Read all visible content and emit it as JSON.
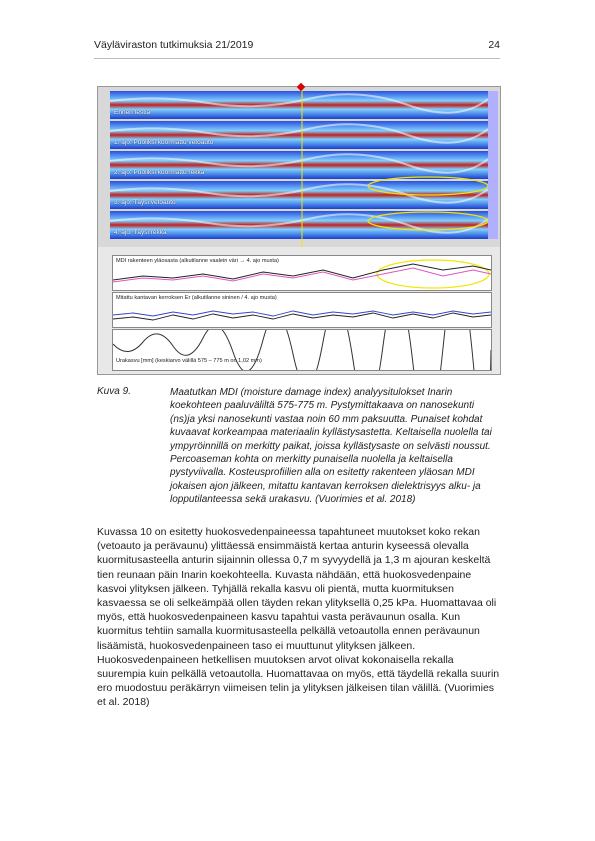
{
  "header": {
    "left": "Väyläviraston tutkimuksia 21/2019",
    "right": "24"
  },
  "figure": {
    "gpr_labels": [
      "Ennen testiä",
      "1. ajo: Puoliksi kuormattu vetoauto",
      "2. ajo: Puoliksi kuormattu rekka",
      "3. ajo: Täysi vetoauto",
      "4. ajo: Täysi rekka"
    ],
    "profile1_label": "MDI rakenteen yläosasta (alkutilanne vaalein väri → 4. ajo musta)",
    "profile2_label": "Mitattu kantavan kerroksen Er (alkutilanne sininen / 4. ajo musta)",
    "profile3_label": "Urakasvu [mm] (keskiarvo välillä 575 – 775 m on 1,02 mm)",
    "colors": {
      "highlight": "#f2e600",
      "marker": "#e00000",
      "gpr_bg": "#1a3fd0"
    }
  },
  "caption": {
    "number": "Kuva 9.",
    "text": "Maatutkan MDI (moisture damage index) analyysitulokset Inarin koekohteen paaluväliltä 575-775 m. Pystymittakaava on nanosekunti (ns)ja yksi nanosekunti vastaa noin 60 mm paksuutta. Punaiset kohdat kuvaavat korkeampaa materiaalin kyllästysastetta. Keltaisella nuolella tai ympyröinnillä on merkitty paikat, joissa kyllästysaste on selvästi noussut. Percoaseman kohta on merkitty punaisella nuolella ja keltaisella pystyviivalla. Kosteusprofiilien alla on esitetty rakenteen yläosan MDI jokaisen ajon jälkeen, mitattu kantavan kerroksen dielektrisyys alku- ja lopputilanteessa sekä urakasvu. (Vuorimies et al. 2018)"
  },
  "body": {
    "paragraph": "Kuvassa 10 on esitetty huokosvedenpaineessa tapahtuneet muutokset koko rekan (vetoauto ja perävaunu) ylittäessä ensimmäistä kertaa anturin kyseessä olevalla kuormitusasteella anturin sijainnin ollessa 0,7 m syvyydellä ja 1,3 m ajouran keskeltä tien reunaan päin Inarin koekohteella. Kuvasta nähdään, että huokosvedenpaine kasvoi ylityksen jälkeen. Tyhjällä rekalla kasvu oli pientä, mutta kuormituksen kasvaessa se oli selkeämpää ollen täyden rekan ylityksellä 0,25 kPa. Huomattavaa oli myös, että huokosvedenpaineen kasvu tapahtui vasta perävaunun osalla. Kun kuormitus tehtiin samalla kuormitusasteella pelkällä vetoautolla ennen perävaunun lisäämistä, huokosvedenpaineen taso ei muuttunut ylityksen jälkeen. Huokosvedenpaineen hetkellisen muutoksen arvot olivat kokonaisella rekalla suurempia kuin pelkällä vetoautolla. Huomattavaa on myös, että täydellä rekalla suurin ero muodostuu peräkärryn viimeisen telin ja ylityksen jälkeisen tilan välillä. (Vuorimies et al. 2018)"
  }
}
